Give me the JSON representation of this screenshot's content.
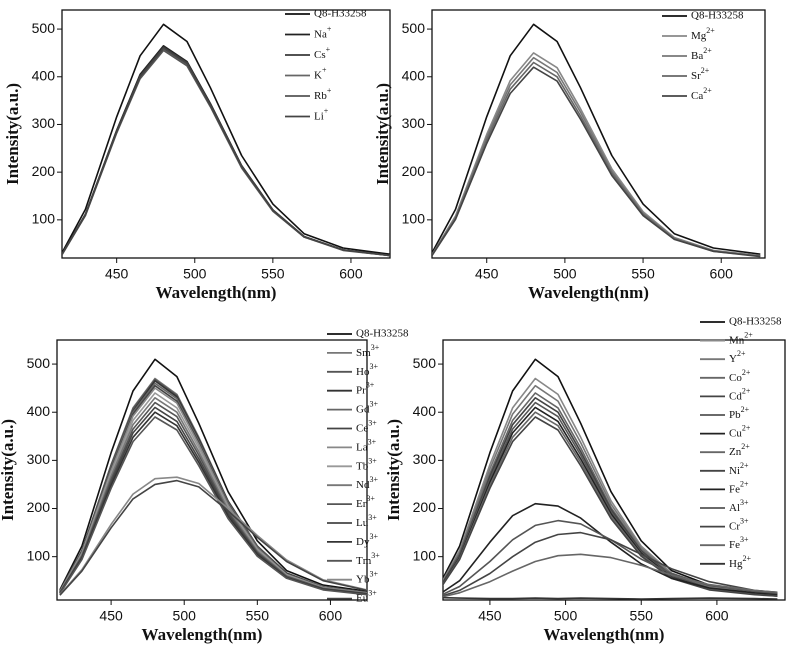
{
  "chart_data": [
    {
      "type": "line",
      "xlabel": "Wavelength(nm)",
      "ylabel": "Intensity(a.u.)",
      "legend": "upper right",
      "x": [
        415,
        430,
        450,
        465,
        480,
        495,
        510,
        530,
        550,
        570,
        595,
        625
      ],
      "xlim": [
        415,
        625
      ],
      "ylim": [
        20,
        540
      ],
      "xticks": [
        450,
        500,
        550,
        600
      ],
      "yticks": [
        100,
        200,
        300,
        400,
        500
      ],
      "series": [
        {
          "name": "Q8-H33258",
          "color": "#111111",
          "values": [
            31,
            122,
            316,
            444,
            510,
            474,
            377,
            235,
            133,
            71,
            41,
            28
          ]
        },
        {
          "name": "Na+",
          "color": "#222222",
          "values": [
            28,
            112,
            288,
            405,
            465,
            432,
            344,
            214,
            121,
            65,
            37,
            26
          ]
        },
        {
          "name": "Cs+",
          "color": "#3a3a3a",
          "values": [
            28,
            111,
            286,
            402,
            462,
            430,
            342,
            213,
            120,
            65,
            37,
            25
          ]
        },
        {
          "name": "K+",
          "color": "#666666",
          "values": [
            27,
            110,
            284,
            398,
            458,
            426,
            339,
            211,
            119,
            64,
            37,
            25
          ]
        },
        {
          "name": "Rb+",
          "color": "#555555",
          "values": [
            27,
            109,
            282,
            396,
            455,
            423,
            337,
            209,
            118,
            64,
            36,
            25
          ]
        },
        {
          "name": "Li+",
          "color": "#444444",
          "values": [
            28,
            110,
            285,
            400,
            460,
            428,
            340,
            212,
            120,
            64,
            37,
            25
          ]
        }
      ]
    },
    {
      "type": "line",
      "xlabel": "Wavelength(nm)",
      "ylabel": "Intensity(a.u.)",
      "legend": "upper right",
      "x": [
        415,
        430,
        450,
        465,
        480,
        495,
        510,
        530,
        550,
        570,
        595,
        625
      ],
      "xlim": [
        415,
        628
      ],
      "ylim": [
        20,
        540
      ],
      "xticks": [
        450,
        500,
        550,
        600
      ],
      "yticks": [
        100,
        200,
        300,
        400,
        500
      ],
      "series": [
        {
          "name": "Q8-H33258",
          "color": "#111111",
          "values": [
            31,
            122,
            316,
            444,
            510,
            474,
            377,
            235,
            133,
            71,
            41,
            28
          ]
        },
        {
          "name": "Mg2+",
          "color": "#888888",
          "values": [
            27,
            108,
            279,
            392,
            450,
            419,
            333,
            207,
            117,
            63,
            36,
            25
          ]
        },
        {
          "name": "Ba2+",
          "color": "#777777",
          "values": [
            26,
            106,
            273,
            383,
            440,
            409,
            326,
            202,
            114,
            62,
            35,
            24
          ]
        },
        {
          "name": "Sr2+",
          "color": "#666666",
          "values": [
            26,
            103,
            267,
            374,
            430,
            400,
            318,
            198,
            112,
            60,
            34,
            24
          ]
        },
        {
          "name": "Ca2+",
          "color": "#444444",
          "values": [
            25,
            101,
            260,
            365,
            420,
            391,
            311,
            193,
            109,
            59,
            34,
            23
          ]
        }
      ]
    },
    {
      "type": "line",
      "xlabel": "Wavelength(nm)",
      "ylabel": "Intensity(a.u.)",
      "legend": "upper right",
      "x": [
        415,
        430,
        450,
        465,
        480,
        495,
        510,
        530,
        550,
        570,
        595,
        625
      ],
      "xlim": [
        413,
        625
      ],
      "ylim": [
        10,
        550
      ],
      "xticks": [
        450,
        500,
        550,
        600
      ],
      "yticks": [
        100,
        200,
        300,
        400,
        500
      ],
      "series": [
        {
          "name": "Q8-H33258",
          "color": "#111111",
          "values": [
            31,
            122,
            316,
            444,
            510,
            474,
            377,
            235,
            133,
            71,
            41,
            28
          ]
        },
        {
          "name": "Sm3+",
          "color": "#777777",
          "values": [
            28,
            113,
            291,
            409,
            470,
            437,
            348,
            216,
            122,
            66,
            38,
            26
          ]
        },
        {
          "name": "Ho3+",
          "color": "#555555",
          "values": [
            28,
            112,
            290,
            407,
            468,
            435,
            346,
            215,
            122,
            66,
            37,
            26
          ]
        },
        {
          "name": "Pr3+",
          "color": "#333333",
          "values": [
            28,
            111,
            286,
            402,
            465,
            432,
            344,
            214,
            121,
            65,
            37,
            26
          ]
        },
        {
          "name": "Gd3+",
          "color": "#666666",
          "values": [
            28,
            110,
            285,
            400,
            460,
            428,
            340,
            212,
            120,
            64,
            37,
            25
          ]
        },
        {
          "name": "Ce3+",
          "color": "#444444",
          "values": [
            27,
            109,
            282,
            396,
            455,
            423,
            337,
            209,
            118,
            64,
            36,
            25
          ]
        },
        {
          "name": "La3+",
          "color": "#888888",
          "values": [
            27,
            108,
            279,
            392,
            450,
            419,
            333,
            207,
            117,
            63,
            36,
            25
          ]
        },
        {
          "name": "Tb3+",
          "color": "#999999",
          "values": [
            26,
            106,
            273,
            383,
            440,
            409,
            326,
            202,
            114,
            62,
            35,
            24
          ]
        },
        {
          "name": "Nd3+",
          "color": "#777777",
          "values": [
            26,
            103,
            267,
            374,
            430,
            400,
            318,
            198,
            112,
            60,
            34,
            24
          ]
        },
        {
          "name": "Er3+",
          "color": "#555555",
          "values": [
            25,
            101,
            260,
            365,
            420,
            391,
            311,
            193,
            109,
            59,
            34,
            23
          ]
        },
        {
          "name": "Lu3+",
          "color": "#444444",
          "values": [
            25,
            98,
            254,
            357,
            410,
            381,
            303,
            189,
            107,
            57,
            33,
            23
          ]
        },
        {
          "name": "Dy3+",
          "color": "#333333",
          "values": [
            24,
            96,
            248,
            348,
            400,
            372,
            296,
            184,
            104,
            56,
            32,
            22
          ]
        },
        {
          "name": "Tm3+",
          "color": "#555555",
          "values": [
            23,
            94,
            242,
            339,
            390,
            363,
            289,
            179,
            101,
            55,
            31,
            21
          ]
        },
        {
          "name": "Yb3+",
          "color": "#888888",
          "values": [
            21,
            73,
            167,
            230,
            262,
            265,
            252,
            200,
            144,
            93,
            52,
            31
          ]
        },
        {
          "name": "Eu3+",
          "color": "#444444",
          "values": [
            20,
            70,
            160,
            220,
            250,
            258,
            245,
            195,
            140,
            90,
            50,
            30
          ]
        }
      ]
    },
    {
      "type": "line",
      "xlabel": "Wavelength(nm)",
      "ylabel": "Intensity(a.u.)",
      "legend": "upper right",
      "x": [
        415,
        430,
        450,
        465,
        480,
        495,
        510,
        530,
        550,
        570,
        595,
        625,
        640
      ],
      "xlim": [
        419,
        645
      ],
      "ylim": [
        10,
        550
      ],
      "xticks": [
        450,
        500,
        550,
        600
      ],
      "yticks": [
        100,
        200,
        300,
        400,
        500
      ],
      "series": [
        {
          "name": "Q8-H33258",
          "color": "#111111",
          "values": [
            31,
            122,
            316,
            444,
            510,
            474,
            377,
            235,
            133,
            71,
            41,
            28,
            23
          ]
        },
        {
          "name": "Mn2+",
          "color": "#888888",
          "values": [
            28,
            113,
            291,
            409,
            470,
            437,
            348,
            216,
            122,
            66,
            38,
            26,
            21
          ]
        },
        {
          "name": "Y2+",
          "color": "#777777",
          "values": [
            27,
            109,
            282,
            396,
            455,
            423,
            337,
            209,
            118,
            64,
            36,
            25,
            20
          ]
        },
        {
          "name": "Co2+",
          "color": "#666666",
          "values": [
            26,
            106,
            273,
            383,
            440,
            409,
            326,
            202,
            114,
            62,
            35,
            24,
            20
          ]
        },
        {
          "name": "Cd2+",
          "color": "#444444",
          "values": [
            26,
            103,
            267,
            374,
            430,
            400,
            318,
            198,
            112,
            60,
            34,
            24,
            19
          ]
        },
        {
          "name": "Pb2+",
          "color": "#555555",
          "values": [
            25,
            101,
            260,
            365,
            420,
            391,
            311,
            193,
            109,
            59,
            34,
            23,
            19
          ]
        },
        {
          "name": "Cu2+",
          "color": "#222222",
          "values": [
            25,
            98,
            254,
            357,
            410,
            381,
            303,
            189,
            107,
            57,
            33,
            23,
            18
          ]
        },
        {
          "name": "Zn2+",
          "color": "#666666",
          "values": [
            24,
            96,
            248,
            348,
            400,
            372,
            296,
            184,
            104,
            56,
            32,
            22,
            18
          ]
        },
        {
          "name": "Ni2+",
          "color": "#444444",
          "values": [
            23,
            94,
            242,
            339,
            390,
            363,
            289,
            179,
            101,
            55,
            31,
            21,
            18
          ]
        },
        {
          "name": "Fe2+",
          "color": "#222222",
          "values": [
            18,
            50,
            130,
            185,
            210,
            205,
            180,
            130,
            85,
            55,
            35,
            25,
            22
          ]
        },
        {
          "name": "Al3+",
          "color": "#555555",
          "values": [
            16,
            38,
            90,
            135,
            165,
            175,
            168,
            135,
            95,
            65,
            40,
            28,
            24
          ]
        },
        {
          "name": "Cr3+",
          "color": "#444444",
          "values": [
            15,
            30,
            65,
            100,
            130,
            146,
            150,
            135,
            105,
            75,
            48,
            30,
            26
          ]
        },
        {
          "name": "Fe3+",
          "color": "#666666",
          "values": [
            14,
            25,
            48,
            70,
            90,
            102,
            105,
            98,
            82,
            62,
            42,
            30,
            26
          ]
        },
        {
          "name": "Hg2+",
          "color": "#333333",
          "values": [
            15,
            14,
            13,
            13,
            14,
            13,
            14,
            13,
            12,
            13,
            14,
            13,
            12
          ]
        }
      ]
    }
  ]
}
